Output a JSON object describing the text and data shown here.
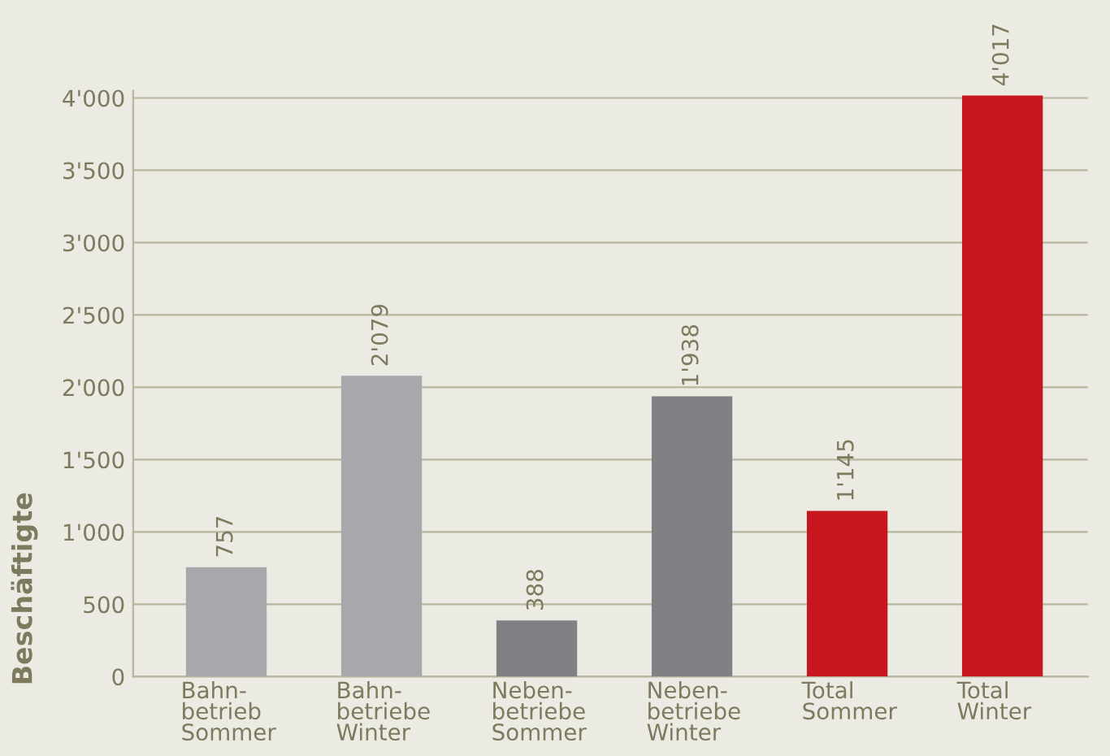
{
  "chart_data": {
    "type": "bar",
    "ylabel": "Beschäftigte",
    "categories": [
      "Bahn-\nbetrieb\nSommer",
      "Bahn-\nbetriebe\nWinter",
      "Neben-\nbetriebe\nSommer",
      "Neben-\nbetriebe\nWinter",
      "Total\nSommer",
      "Total\nWinter"
    ],
    "values": [
      757,
      2079,
      388,
      1938,
      1145,
      4017
    ],
    "value_labels": [
      "757",
      "2'079",
      "388",
      "1'938",
      "1'145",
      "4'017"
    ],
    "colors": [
      "#a7a8ab",
      "#a7a8ab",
      "#808184",
      "#808184",
      "#c8161e",
      "#c8161e"
    ],
    "ylim": [
      0,
      4050
    ],
    "yticks": [
      0,
      500,
      {
        "value": 1000,
        "label": "1'000"
      },
      {
        "value": 1500,
        "label": "1'500"
      },
      {
        "value": 2000,
        "label": "2'000"
      },
      {
        "value": 2500,
        "label": "2'500"
      },
      {
        "value": 3000,
        "label": "3'000"
      },
      {
        "value": 3500,
        "label": "3'500"
      },
      {
        "value": 4000,
        "label": "4'000"
      }
    ],
    "grid": "y"
  }
}
